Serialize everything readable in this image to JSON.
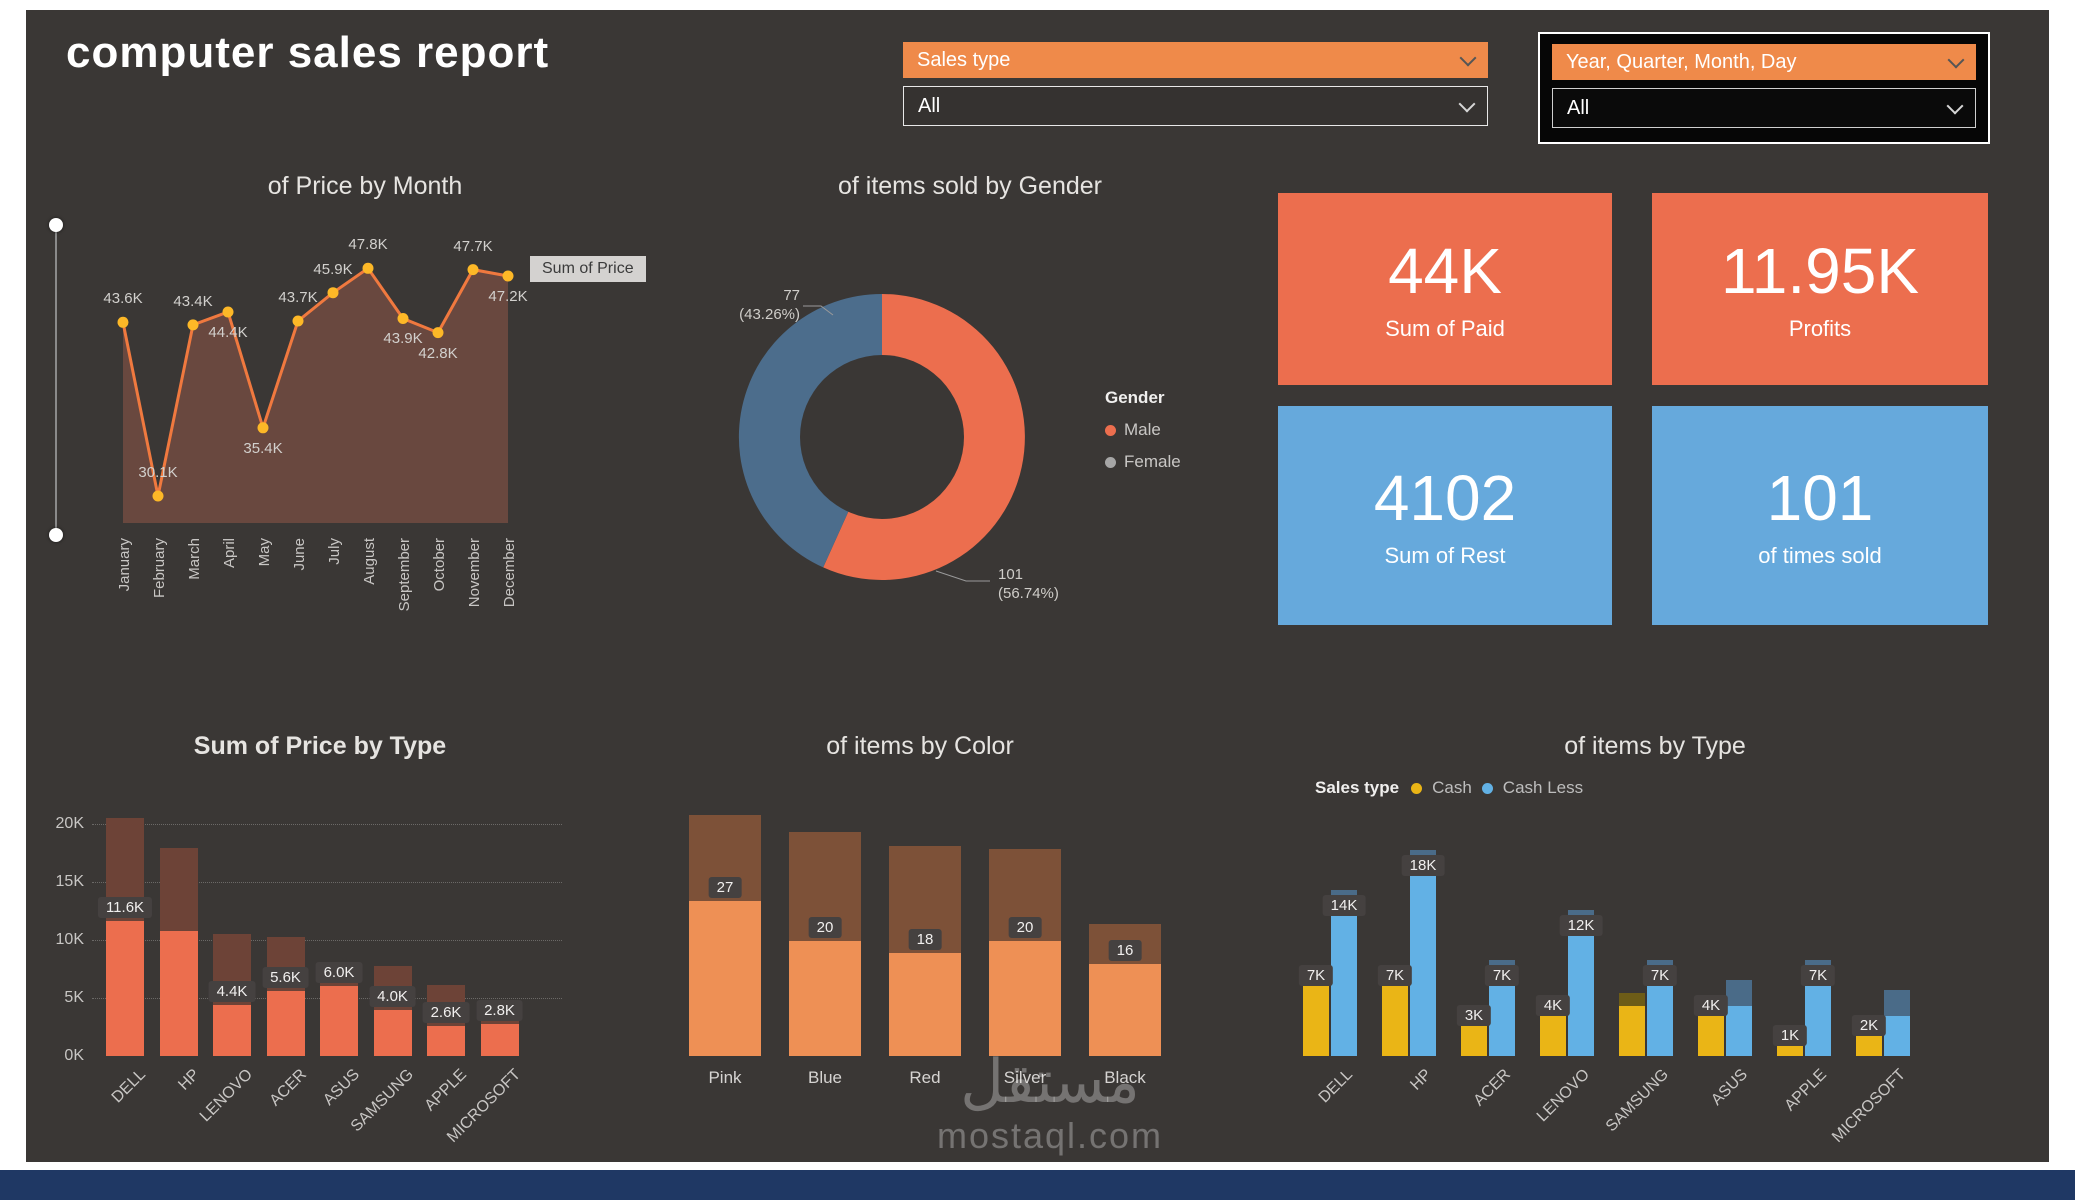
{
  "app": {
    "title": "computer sales report",
    "background": "#3a3735",
    "footer_color": "#1f3864"
  },
  "filters": {
    "sales_type": {
      "label": "Sales type",
      "value": "All"
    },
    "date_hierarchy": {
      "label": "Year, Quarter, Month, Day",
      "value": "All"
    }
  },
  "kpis": [
    {
      "value": "44K",
      "label": "Sum of Paid",
      "bg": "#ec6e4e"
    },
    {
      "value": "11.95K",
      "label": "Profits",
      "bg": "#ec6e4e"
    },
    {
      "value": "4102",
      "label": "Sum of Rest",
      "bg": "#66a9dc"
    },
    {
      "value": "101",
      "label": "of times sold",
      "bg": "#66a9dc"
    }
  ],
  "tooltip": {
    "label": "Sum of Price"
  },
  "chart_data": [
    {
      "id": "price_by_month",
      "type": "line",
      "title": "of Price by Month",
      "series_name": "Sum of Price",
      "categories": [
        "January",
        "February",
        "March",
        "April",
        "May",
        "June",
        "July",
        "August",
        "September",
        "October",
        "November",
        "December"
      ],
      "values_k": [
        43.6,
        30.1,
        43.4,
        44.4,
        35.4,
        43.7,
        45.9,
        47.8,
        43.9,
        42.8,
        47.7,
        47.2
      ],
      "labels": [
        "43.6K",
        "30.1K",
        "43.4K",
        "44.4K",
        "35.4K",
        "43.7K",
        "45.9K",
        "47.8K",
        "43.9K",
        "42.8K",
        "47.7K",
        "47.2K"
      ],
      "label_below": [
        false,
        false,
        false,
        true,
        true,
        false,
        false,
        false,
        true,
        true,
        false,
        true
      ],
      "ylim_k": [
        28,
        50
      ],
      "line_color": "#f0793f",
      "marker_color": "#fdb827",
      "area_color": "#6e4a40"
    },
    {
      "id": "items_sold_by_gender",
      "type": "pie",
      "title": "of items sold by Gender",
      "legend_title": "Gender",
      "slices": [
        {
          "name": "Male",
          "value": 101,
          "pct": 56.74,
          "pct_label": "(56.74%)",
          "color": "#ec6e4e",
          "legend_color": "#ec6e4e"
        },
        {
          "name": "Female",
          "value": 77,
          "pct": 43.26,
          "pct_label": "(43.26%)",
          "color": "#4c6d8c",
          "legend_color": "#a6a6a6"
        }
      ]
    },
    {
      "id": "sum_of_price_by_type",
      "type": "bar",
      "title": "Sum of Price by Type",
      "categories": [
        "DELL",
        "HP",
        "LENOVO",
        "ACER",
        "ASUS",
        "SAMSUNG",
        "APPLE",
        "MICROSOFT"
      ],
      "series": [
        {
          "name": "price",
          "color": "#ec6e4e",
          "values_k": [
            11.6,
            10.8,
            4.4,
            5.6,
            6.0,
            4.0,
            2.6,
            2.8
          ]
        },
        {
          "name": "upper",
          "color": "#6d4337",
          "values_k": [
            8.9,
            7.1,
            6.1,
            4.7,
            2.1,
            3.8,
            3.5,
            1.1
          ]
        }
      ],
      "labels": [
        "11.6K",
        "",
        "4.4K",
        "5.6K",
        "6.0K",
        "4.0K",
        "2.6K",
        "2.8K"
      ],
      "y_ticks": [
        "20K",
        "15K",
        "10K",
        "5K",
        "0K"
      ],
      "ylim_k": [
        0,
        20
      ]
    },
    {
      "id": "items_by_color",
      "type": "bar",
      "title": "of items by Color",
      "categories": [
        "Pink",
        "Blue",
        "Red",
        "Silver",
        "Black"
      ],
      "series": [
        {
          "name": "items",
          "color": "#ee9055",
          "values": [
            27,
            20,
            18,
            20,
            16
          ]
        },
        {
          "name": "upper",
          "color": "#7d5138",
          "values": [
            15,
            19,
            18.5,
            16,
            7
          ]
        }
      ],
      "labels": [
        "27",
        "20",
        "18",
        "20",
        "16"
      ]
    },
    {
      "id": "items_by_type",
      "type": "bar",
      "title": "of items by Type",
      "legend_title": "Sales type",
      "categories": [
        "DELL",
        "HP",
        "ACER",
        "LENOVO",
        "SAMSUNG",
        "ASUS",
        "APPLE",
        "MICROSOFT"
      ],
      "series": [
        {
          "name": "Cash",
          "color": "#eab516",
          "cap_color": "#6d5c17",
          "values_k": [
            7,
            7,
            3,
            4,
            5,
            4,
            1,
            2
          ],
          "labels": [
            "7K",
            "7K",
            "3K",
            "4K",
            "",
            "4K",
            "1K",
            "2K"
          ]
        },
        {
          "name": "Cash Less",
          "color": "#62b1e5",
          "cap_color": "#4a6b88",
          "values_k": [
            14,
            18,
            7,
            12,
            7,
            5,
            7,
            4
          ],
          "labels": [
            "14K",
            "18K",
            "7K",
            "12K",
            "7K",
            "",
            "7K",
            ""
          ]
        }
      ]
    }
  ],
  "watermark": {
    "line1": "مستقل",
    "line2": "mostaql.com"
  }
}
